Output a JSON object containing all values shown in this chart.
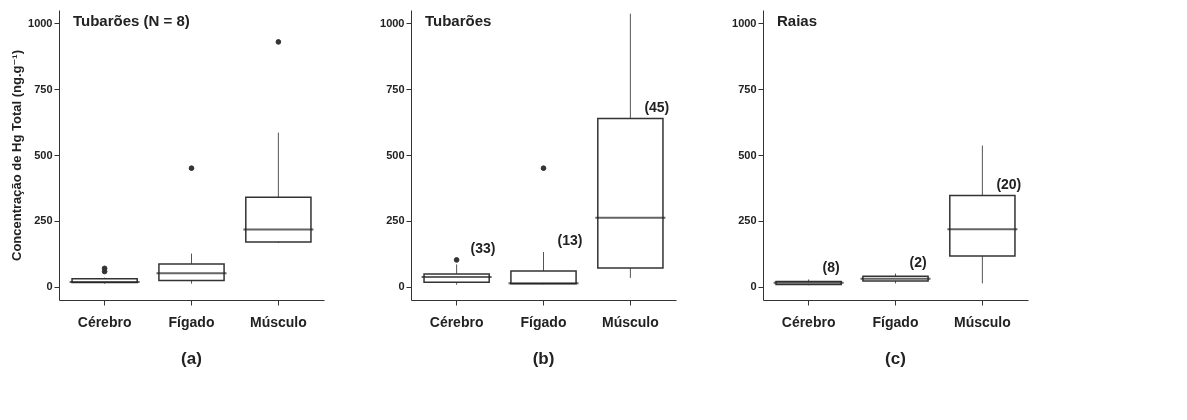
{
  "chart_data": [
    {
      "type": "box",
      "title": "Tubarões (N = 8)",
      "ylabel": "Concentração de Hg Total (ng.g⁻¹)",
      "categories": [
        "Cérebro",
        "Fígado",
        "Músculo"
      ],
      "boxes": [
        {
          "low": 12,
          "q1": 16,
          "median": 18,
          "q3": 31,
          "high": 35,
          "outliers": [
            58,
            70
          ]
        },
        {
          "low": 12,
          "q1": 24,
          "median": 51,
          "q3": 87,
          "high": 126,
          "outliers": [
            450
          ]
        },
        {
          "low": 166,
          "q1": 170,
          "median": 217,
          "q3": 340,
          "high": 585,
          "outliers": [
            929
          ]
        }
      ],
      "ylim": [
        -50,
        1050
      ],
      "yticks": [
        0,
        250,
        500,
        750,
        1000
      ],
      "annotations": [
        "(a)"
      ]
    },
    {
      "type": "box",
      "title": "Tubarões",
      "categories": [
        "Cérebro",
        "Fígado",
        "Músculo"
      ],
      "boxes": [
        {
          "low": 8,
          "q1": 17,
          "median": 37,
          "q3": 49,
          "high": 85,
          "outliers": [
            102
          ]
        },
        {
          "low": 10,
          "q1": 12,
          "median": 14,
          "q3": 60,
          "high": 132,
          "outliers": [
            450
          ]
        },
        {
          "low": 34,
          "q1": 71,
          "median": 262,
          "q3": 638,
          "high": 1036
        }
      ],
      "ylim": [
        -50,
        1050
      ],
      "yticks": [
        0,
        250,
        500,
        750,
        1000
      ],
      "annotations": [
        "(b)",
        {
          "text": "(33)",
          "x": "Cérebro",
          "y": 102
        },
        {
          "text": "(13)",
          "x": "Fígado",
          "y": 132
        },
        {
          "text": "(45)",
          "x": "Músculo",
          "y": 638
        }
      ]
    },
    {
      "type": "box",
      "title": "Raias",
      "categories": [
        "Cérebro",
        "Fígado",
        "Músculo"
      ],
      "boxes": [
        {
          "low": 6,
          "q1": 9,
          "median": 15,
          "q3": 20,
          "high": 28
        },
        {
          "low": 13,
          "q1": 22,
          "median": 31,
          "q3": 40,
          "high": 50
        },
        {
          "low": 13,
          "q1": 117,
          "median": 218,
          "q3": 346,
          "high": 536
        }
      ],
      "ylim": [
        -50,
        1050
      ],
      "yticks": [
        0,
        250,
        500,
        750,
        1000
      ],
      "annotations": [
        "(c)",
        {
          "text": "(8)",
          "x": "Cérebro",
          "y": 28
        },
        {
          "text": "(2)",
          "x": "Fígado",
          "y": 50
        },
        {
          "text": "(20)",
          "x": "Músculo",
          "y": 346
        }
      ]
    }
  ]
}
